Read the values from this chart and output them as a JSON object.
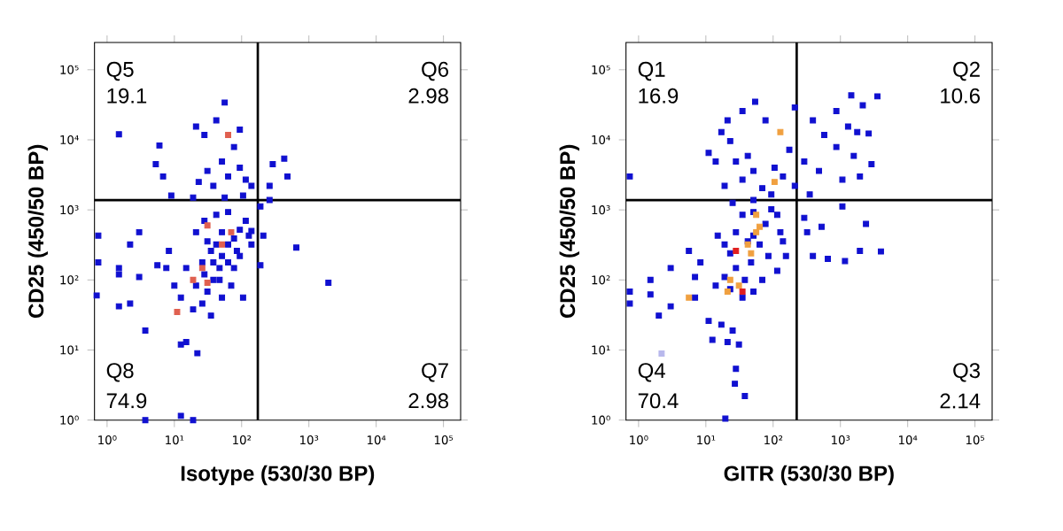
{
  "chart_data": [
    {
      "type": "scatter",
      "xlabel": "Isotype (530/30 BP)",
      "ylabel": "CD25 (450/50 BP)",
      "log": "xy",
      "marker": "square",
      "grid": false,
      "xlim": [
        0.65,
        180000
      ],
      "ylim": [
        1,
        245000
      ],
      "xticks": [
        {
          "value": 1,
          "label": "10⁰"
        },
        {
          "value": 10,
          "label": "10¹"
        },
        {
          "value": 100,
          "label": "10²"
        },
        {
          "value": 1000,
          "label": "10³"
        },
        {
          "value": 10000,
          "label": "10⁴"
        },
        {
          "value": 100000,
          "label": "10⁵"
        }
      ],
      "yticks": [
        {
          "value": 1,
          "label": "10⁰"
        },
        {
          "value": 10,
          "label": "10¹"
        },
        {
          "value": 100,
          "label": "10²"
        },
        {
          "value": 1000,
          "label": "10³"
        },
        {
          "value": 10000,
          "label": "10⁴"
        },
        {
          "value": 100000,
          "label": "10⁵"
        }
      ],
      "ref_lines": [
        {
          "axis": "x",
          "value": 174
        },
        {
          "axis": "y",
          "value": 1380
        }
      ],
      "annotations": [
        "Q5",
        "19.1",
        "Q6",
        "2.98",
        "Q8",
        "74.9",
        "Q7",
        "2.98"
      ],
      "series": [
        {
          "color": "#1010d0",
          "x": [
            56,
            1.5,
            6,
            5.3,
            6.8,
            9,
            21,
            28,
            42,
            94,
            77,
            51,
            31,
            23,
            38,
            63,
            94,
            115,
            140,
            19,
            56,
            105,
            260,
            430,
            480,
            290,
            260,
            190,
            51,
            63,
            77,
            94,
            115,
            47,
            38,
            31,
            26,
            19,
            12.5,
            10,
            7.6,
            5.6,
            8.3,
            21,
            28,
            42,
            63,
            26,
            15,
            77,
            94,
            140,
            128,
            70,
            51,
            105,
            35,
            15,
            12.5,
            22,
            3.7,
            2.2,
            1.5,
            1.5,
            1.5,
            3,
            0.74,
            0.74,
            0.7,
            2.2,
            3,
            190,
            140,
            210,
            650,
            1950,
            3.7,
            12.5,
            19,
            42,
            51,
            35,
            63,
            47,
            85,
            38,
            28,
            21,
            31
          ],
          "values": [
            34000,
            12000,
            8300,
            4500,
            3000,
            1600,
            15500,
            11700,
            19000,
            14000,
            7900,
            4900,
            3600,
            2500,
            2200,
            3000,
            4000,
            2700,
            2200,
            1500,
            1500,
            1600,
            2200,
            5400,
            3000,
            4500,
            1380,
            1120,
            220,
            320,
            390,
            520,
            700,
            148,
            100,
            68,
            46,
            38,
            56,
            83,
            148,
            162,
            260,
            480,
            700,
            850,
            930,
            178,
            148,
            148,
            220,
            320,
            430,
            83,
            56,
            56,
            31,
            13,
            12,
            9,
            19,
            46,
            42,
            120,
            148,
            110,
            430,
            178,
            60,
            320,
            480,
            162,
            500,
            430,
            290,
            91,
            1,
            1.15,
            1,
            320,
            480,
            260,
            178,
            100,
            260,
            178,
            120,
            83,
            355
          ]
        },
        {
          "color": "#e06050",
          "x": [
            63,
            31,
            51,
            70,
            26,
            19,
            31,
            11
          ],
          "values": [
            11700,
            600,
            320,
            480,
            148,
            100,
            91,
            35
          ]
        }
      ]
    },
    {
      "type": "scatter",
      "xlabel": "GITR (530/30 BP)",
      "ylabel": "CD25 (450/50 BP)",
      "log": "xy",
      "marker": "square",
      "grid": false,
      "xlim": [
        0.65,
        180000
      ],
      "ylim": [
        1,
        245000
      ],
      "xticks": [
        {
          "value": 1,
          "label": "10⁰"
        },
        {
          "value": 10,
          "label": "10¹"
        },
        {
          "value": 100,
          "label": "10²"
        },
        {
          "value": 1000,
          "label": "10³"
        },
        {
          "value": 10000,
          "label": "10⁴"
        },
        {
          "value": 100000,
          "label": "10⁵"
        }
      ],
      "yticks": [
        {
          "value": 1,
          "label": "10⁰"
        },
        {
          "value": 10,
          "label": "10¹"
        },
        {
          "value": 100,
          "label": "10²"
        },
        {
          "value": 1000,
          "label": "10³"
        },
        {
          "value": 10000,
          "label": "10⁴"
        },
        {
          "value": 100000,
          "label": "10⁵"
        }
      ],
      "ref_lines": [
        {
          "axis": "x",
          "value": 224
        },
        {
          "axis": "y",
          "value": 1380
        }
      ],
      "annotations": [
        "Q1",
        "16.9",
        "Q2",
        "10.6",
        "Q4",
        "70.4",
        "Q3",
        "2.14"
      ],
      "series": [
        {
          "color": "#1010d0",
          "x": [
            54,
            210,
            1450,
            3550,
            2150,
            870,
            390,
            1300,
            1780,
            2630,
            575,
            870,
            1580,
            2900,
            1950,
            1070,
            480,
            290,
            210,
            350,
            290,
            320,
            525,
            1070,
            2400,
            1950,
            4000,
            650,
            1170,
            390,
            128,
            94,
            105,
            77,
            35,
            21,
            17,
            23,
            11,
            14,
            28,
            42,
            19,
            35,
            51,
            69,
            25,
            51,
            94,
            140,
            174,
            0.74,
            35,
            51,
            77,
            115,
            28,
            42,
            63,
            85,
            47,
            28,
            19,
            14,
            23,
            35,
            51,
            69,
            115,
            140,
            155,
            8.3,
            6.9,
            5.6,
            3,
            1.5,
            1.5,
            3,
            2,
            6.9,
            11,
            17,
            25,
            12.5,
            21,
            31,
            28,
            27,
            38,
            19.5,
            0.74,
            0.74,
            19,
            15,
            51,
            23,
            38
          ],
          "values": [
            35000,
            29000,
            43000,
            41700,
            31000,
            25700,
            19000,
            15500,
            12900,
            12300,
            11700,
            7900,
            5900,
            4500,
            3000,
            2700,
            3600,
            4900,
            2200,
            1660,
            770,
            480,
            575,
            1120,
            630,
            260,
            255,
            200,
            186,
            220,
            480,
            1020,
            4000,
            19000,
            25700,
            19000,
            12900,
            9600,
            6500,
            4900,
            4900,
            5900,
            2200,
            2700,
            3600,
            2040,
            1260,
            1380,
            1660,
            3000,
            7200,
            3000,
            850,
            930,
            630,
            850,
            480,
            355,
            320,
            220,
            178,
            148,
            110,
            83,
            74,
            56,
            68,
            100,
            135,
            355,
            220,
            178,
            110,
            260,
            148,
            100,
            62,
            42,
            31,
            56,
            26,
            23,
            19,
            14,
            13,
            12,
            5.4,
            3.3,
            2.2,
            1.05,
            68,
            46,
            320,
            430,
            430,
            240,
            100
          ]
        },
        {
          "color": "#f0a040",
          "x": [
            128,
            105,
            56,
            63,
            42,
            47,
            23,
            21,
            31,
            5.6,
            56
          ],
          "values": [
            12900,
            2500,
            480,
            575,
            320,
            240,
            100,
            68,
            83,
            56,
            850
          ]
        },
        {
          "color": "#e02020",
          "x": [
            35,
            28
          ],
          "values": [
            68,
            260
          ]
        },
        {
          "color": "#b8b8ec",
          "x": [
            2.2
          ],
          "values": [
            8.9
          ]
        }
      ]
    }
  ]
}
